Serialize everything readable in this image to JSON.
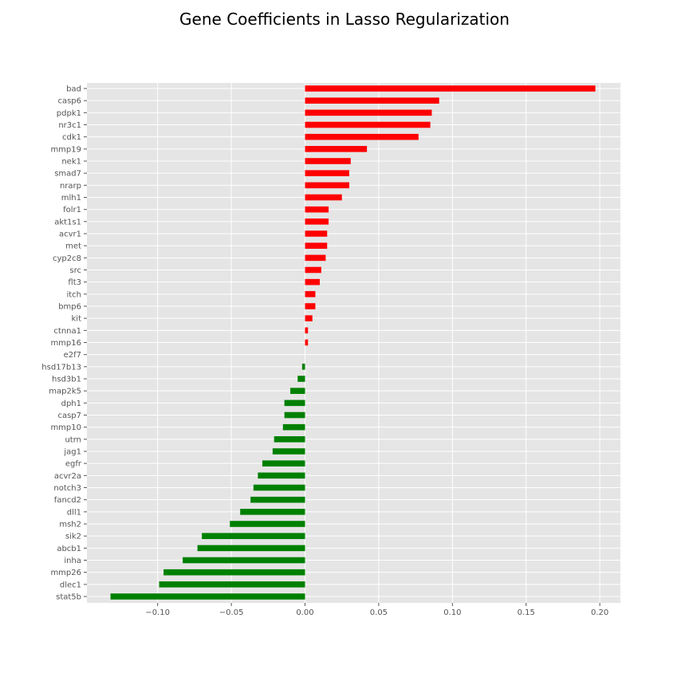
{
  "chart_data": {
    "type": "bar",
    "orientation": "horizontal",
    "title": "Gene Coefficients in Lasso Regularization",
    "xlabel": "",
    "ylabel": "",
    "xlim": [
      -0.148,
      0.214
    ],
    "xticks": [
      -0.1,
      -0.05,
      0.0,
      0.05,
      0.1,
      0.15,
      0.2
    ],
    "xtick_labels": [
      "−0.10",
      "−0.05",
      "0.00",
      "0.05",
      "0.10",
      "0.15",
      "0.20"
    ],
    "grid": true,
    "positive_color": "#ff0000",
    "negative_color": "#008000",
    "background_color": "#e5e5e5",
    "categories": [
      "bad",
      "casp6",
      "pdpk1",
      "nr3c1",
      "cdk1",
      "mmp19",
      "nek1",
      "smad7",
      "nrarp",
      "mlh1",
      "folr1",
      "akt1s1",
      "acvr1",
      "met",
      "cyp2c8",
      "src",
      "flt3",
      "itch",
      "bmp6",
      "kit",
      "ctnna1",
      "mmp16",
      "e2f7",
      "hsd17b13",
      "hsd3b1",
      "map2k5",
      "dph1",
      "casp7",
      "mmp10",
      "utrn",
      "jag1",
      "egfr",
      "acvr2a",
      "notch3",
      "fancd2",
      "dll1",
      "msh2",
      "sik2",
      "abcb1",
      "inha",
      "mmp26",
      "dlec1",
      "stat5b"
    ],
    "values": [
      0.197,
      0.091,
      0.086,
      0.085,
      0.077,
      0.042,
      0.031,
      0.03,
      0.03,
      0.025,
      0.016,
      0.016,
      0.015,
      0.015,
      0.014,
      0.011,
      0.01,
      0.007,
      0.007,
      0.005,
      0.002,
      0.002,
      0.0,
      -0.002,
      -0.005,
      -0.01,
      -0.014,
      -0.014,
      -0.015,
      -0.021,
      -0.022,
      -0.029,
      -0.032,
      -0.035,
      -0.037,
      -0.044,
      -0.051,
      -0.07,
      -0.073,
      -0.083,
      -0.096,
      -0.099,
      -0.132
    ]
  }
}
